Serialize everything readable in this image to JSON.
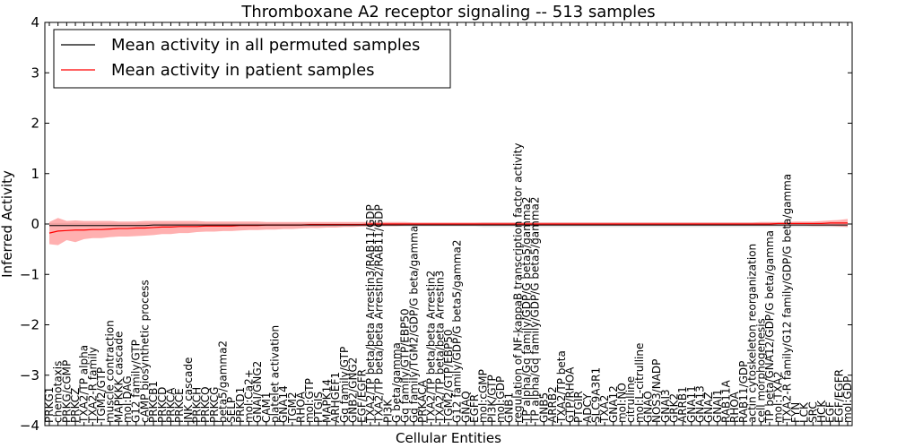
{
  "chart_data": {
    "type": "line",
    "title": "Thromboxane A2 receptor signaling -- 513 samples",
    "xlabel": "Cellular Entities",
    "ylabel": "Inferred Activity",
    "ylim": [
      -4,
      4
    ],
    "yticks": [
      -4,
      -3,
      -2,
      -1,
      0,
      1,
      2,
      3,
      4
    ],
    "ytick_labels": [
      "−4",
      "−3",
      "−2",
      "−1",
      "0",
      "1",
      "2",
      "3",
      "4"
    ],
    "legend": {
      "placement": "top-left",
      "entries": [
        {
          "label": "Mean activity in all permuted samples",
          "color": "#000000"
        },
        {
          "label": "Mean activity in patient samples",
          "color": "#ff0000"
        }
      ]
    },
    "categories": [
      "PRKG1",
      "chemotaxis",
      "PRKG/cGMP",
      "PRKCZ",
      "TXA2/TP alpha",
      "TXA2-R family",
      "TGM2/GTP",
      "muscle contraction",
      "MAPKKK cascade",
      "mol:DAG",
      "G12 family/GTP",
      "cAMP biosynthetic process",
      "PRKCB1",
      "PRKCD",
      "PRKCA",
      "PRKCE",
      "JNK cascade",
      "PRKCH",
      "PRKCQ",
      "PRKCG",
      "beta5/gamma2",
      "SELP",
      "PRKD1",
      "mol:Ca2+",
      "GNAI/GNG2",
      "CAM1",
      "platelet activation",
      "GNA14",
      "TGM2",
      "RHOA",
      "mol:GTP",
      "PTGIS",
      "MAPK14",
      "ARHGEF1",
      "Gq family/GTP",
      "GNB2/GNG2",
      "EGF/EGFR",
      "TXA2/TP beta/beta Arrestin3/RAB11/GDP",
      "TXA2/TP beta/beta Arrestin2/RAB11/GDP",
      "PI3K",
      "G beta/gamma",
      "Gq family/GTP/EBP50",
      "Gq family/TGM2/GDP/G beta/gamma",
      "PRKACA",
      "TXA2/TP beta/beta Arrestin2",
      "TXA2/TP beta/beta Arrestin3",
      "TGM2/GTP/EBP50",
      "G12 family/GDP/G beta5/gamma2",
      "GNAQ",
      "EGFR",
      "mol:cGMP",
      "PI3K/GTP",
      "mol:GDP",
      "GNB1",
      "regulation of NF-kappaB transcription factor activity",
      "TP alpha/Gq family/GDP/G beta5/gamma2",
      "TP alpha/Gq family/GDP/G beta5/gamma2",
      "GNB5",
      "ARRB2",
      "TXA2/TP beta",
      "GTP/RHOA",
      "PTGIR",
      "ADCY",
      "SLC9A3R1",
      "TXA2",
      "GNA12",
      "mol:NO",
      "citrulline",
      "mol:L-citrulline",
      "GNAO",
      "NOS3/NADP",
      "GNAI3",
      "GRK2",
      "ARRB1",
      "GNA11",
      "GNA13",
      "GNAZ",
      "GNAI1",
      "RAB11A",
      "RHOA",
      "RAB11/GDP",
      "actin cytoskeleton reorganization",
      "cell morphogenesis",
      "TP beta/GNA12/GDP/G beta/gamma",
      "mol:TXA2",
      "TXA2-R family/G12 family/GDP/G beta/gamma",
      "FYN",
      "LCK",
      "SRC",
      "HCK",
      "EGF",
      "EGF/EGFR",
      "mol:GDP"
    ],
    "series": [
      {
        "name": "Mean activity in all permuted samples",
        "color": "#000000",
        "values": [
          -0.03,
          -0.03,
          -0.03,
          -0.03,
          -0.03,
          -0.03,
          -0.03,
          -0.03,
          -0.03,
          -0.03,
          -0.03,
          -0.03,
          -0.02,
          -0.02,
          -0.02,
          -0.02,
          -0.02,
          -0.02,
          -0.02,
          -0.02,
          -0.02,
          -0.02,
          -0.02,
          -0.02,
          -0.02,
          -0.02,
          -0.02,
          -0.02,
          -0.02,
          -0.02,
          -0.02,
          -0.02,
          -0.02,
          -0.02,
          -0.02,
          -0.02,
          -0.02,
          -0.02,
          -0.02,
          -0.02,
          -0.02,
          -0.02,
          -0.02,
          -0.02,
          -0.02,
          -0.02,
          -0.02,
          -0.02,
          -0.02,
          -0.02,
          -0.02,
          -0.02,
          -0.02,
          -0.02,
          -0.02,
          -0.02,
          -0.02,
          -0.02,
          -0.02,
          -0.02,
          -0.02,
          -0.02,
          -0.02,
          -0.02,
          -0.02,
          -0.02,
          -0.02,
          -0.02,
          -0.02,
          -0.02,
          -0.02,
          -0.02,
          -0.02,
          -0.02,
          -0.02,
          -0.02,
          -0.02,
          -0.02,
          -0.02,
          -0.02,
          -0.02,
          -0.02,
          -0.02,
          -0.02,
          -0.02,
          -0.02,
          -0.02,
          -0.02,
          -0.02,
          -0.02,
          -0.02,
          -0.02,
          -0.02
        ],
        "band_low": [
          -0.05,
          -0.05,
          -0.05,
          -0.05,
          -0.05,
          -0.05,
          -0.05,
          -0.05,
          -0.05,
          -0.05,
          -0.05,
          -0.05,
          -0.05,
          -0.05,
          -0.05,
          -0.05,
          -0.05,
          -0.05,
          -0.05,
          -0.05,
          -0.05,
          -0.05,
          -0.05,
          -0.05,
          -0.05,
          -0.05,
          -0.05,
          -0.05,
          -0.05,
          -0.05,
          -0.05,
          -0.05,
          -0.05,
          -0.05,
          -0.05,
          -0.05,
          -0.05,
          -0.05,
          -0.05,
          -0.05,
          -0.05,
          -0.05,
          -0.05,
          -0.05,
          -0.05,
          -0.05,
          -0.05,
          -0.05,
          -0.05,
          -0.05,
          -0.06,
          -0.06,
          -0.06,
          -0.06,
          -0.06,
          -0.06,
          -0.06,
          -0.06,
          -0.06,
          -0.06,
          -0.06,
          -0.06,
          -0.06,
          -0.06,
          -0.06,
          -0.06,
          -0.06,
          -0.06,
          -0.06,
          -0.06,
          -0.06,
          -0.06,
          -0.06,
          -0.06,
          -0.06,
          -0.06,
          -0.06,
          -0.06,
          -0.06,
          -0.06,
          -0.06,
          -0.06,
          -0.06,
          -0.06,
          -0.06,
          -0.06,
          -0.06,
          -0.06,
          -0.06,
          -0.06,
          -0.06,
          -0.06,
          -0.06
        ],
        "band_high": [
          0.02,
          0.02,
          0.02,
          0.02,
          0.02,
          0.02,
          0.02,
          0.02,
          0.02,
          0.02,
          0.02,
          0.02,
          0.02,
          0.02,
          0.02,
          0.02,
          0.02,
          0.02,
          0.02,
          0.02,
          0.02,
          0.02,
          0.02,
          0.02,
          0.02,
          0.02,
          0.02,
          0.02,
          0.02,
          0.02,
          0.02,
          0.02,
          0.02,
          0.02,
          0.02,
          0.02,
          0.02,
          0.02,
          0.02,
          0.02,
          0.02,
          0.02,
          0.02,
          0.02,
          0.02,
          0.02,
          0.02,
          0.02,
          0.02,
          0.02,
          0.03,
          0.03,
          0.03,
          0.03,
          0.03,
          0.03,
          0.03,
          0.03,
          0.03,
          0.03,
          0.03,
          0.03,
          0.03,
          0.03,
          0.03,
          0.03,
          0.03,
          0.03,
          0.03,
          0.03,
          0.03,
          0.03,
          0.03,
          0.03,
          0.03,
          0.03,
          0.03,
          0.03,
          0.03,
          0.03,
          0.03,
          0.03,
          0.03,
          0.03,
          0.03,
          0.03,
          0.03,
          0.03,
          0.03,
          0.03,
          0.03,
          0.03,
          0.03
        ]
      },
      {
        "name": "Mean activity in patient samples",
        "color": "#ff0000",
        "values": [
          -0.18,
          -0.14,
          -0.13,
          -0.12,
          -0.12,
          -0.11,
          -0.11,
          -0.1,
          -0.09,
          -0.09,
          -0.08,
          -0.08,
          -0.07,
          -0.06,
          -0.06,
          -0.05,
          -0.05,
          -0.05,
          -0.04,
          -0.04,
          -0.04,
          -0.04,
          -0.03,
          -0.03,
          -0.03,
          -0.02,
          -0.02,
          -0.02,
          -0.02,
          -0.02,
          -0.01,
          -0.01,
          -0.01,
          -0.01,
          -0.01,
          -0.01,
          -0.01,
          0.0,
          0.0,
          0.0,
          0.0,
          0.0,
          0.0,
          0.0,
          0.0,
          0.0,
          0.0,
          0.0,
          0.0,
          0.0,
          0.0,
          0.0,
          0.0,
          0.0,
          0.0,
          0.0,
          0.0,
          0.0,
          0.0,
          0.0,
          0.0,
          0.0,
          0.0,
          0.0,
          0.0,
          0.0,
          0.0,
          0.0,
          0.0,
          0.0,
          0.0,
          0.0,
          0.0,
          0.0,
          0.0,
          0.0,
          0.0,
          0.0,
          0.0,
          0.0,
          0.0,
          0.0,
          0.0,
          0.0,
          0.01,
          0.01,
          0.01,
          0.01,
          0.01,
          0.01,
          0.02,
          0.02,
          0.02
        ],
        "band_low": [
          -0.4,
          -0.42,
          -0.32,
          -0.36,
          -0.3,
          -0.28,
          -0.28,
          -0.26,
          -0.25,
          -0.25,
          -0.24,
          -0.23,
          -0.22,
          -0.2,
          -0.2,
          -0.18,
          -0.18,
          -0.16,
          -0.15,
          -0.15,
          -0.14,
          -0.14,
          -0.13,
          -0.12,
          -0.12,
          -0.11,
          -0.11,
          -0.1,
          -0.1,
          -0.09,
          -0.08,
          -0.08,
          -0.07,
          -0.07,
          -0.06,
          -0.06,
          -0.05,
          -0.05,
          -0.04,
          -0.04,
          -0.04,
          -0.03,
          -0.03,
          -0.03,
          -0.03,
          -0.03,
          -0.03,
          -0.03,
          -0.03,
          -0.03,
          -0.03,
          -0.03,
          -0.03,
          -0.03,
          -0.03,
          -0.03,
          -0.03,
          -0.03,
          -0.03,
          -0.03,
          -0.03,
          -0.03,
          -0.03,
          -0.03,
          -0.03,
          -0.03,
          -0.03,
          -0.03,
          -0.03,
          -0.03,
          -0.03,
          -0.03,
          -0.03,
          -0.03,
          -0.03,
          -0.03,
          -0.03,
          -0.03,
          -0.03,
          -0.03,
          -0.03,
          -0.03,
          -0.03,
          -0.03,
          -0.03,
          -0.03,
          -0.03,
          -0.03,
          -0.04,
          -0.04,
          -0.04,
          -0.05,
          -0.06
        ],
        "band_high": [
          0.04,
          0.12,
          0.06,
          0.07,
          0.06,
          0.06,
          0.06,
          0.06,
          0.05,
          0.05,
          0.05,
          0.06,
          0.06,
          0.06,
          0.06,
          0.06,
          0.06,
          0.06,
          0.05,
          0.05,
          0.05,
          0.05,
          0.05,
          0.05,
          0.05,
          0.04,
          0.04,
          0.04,
          0.04,
          0.04,
          0.04,
          0.04,
          0.04,
          0.04,
          0.04,
          0.04,
          0.04,
          0.04,
          0.04,
          0.04,
          0.04,
          0.04,
          0.03,
          0.03,
          0.03,
          0.03,
          0.03,
          0.03,
          0.03,
          0.03,
          0.03,
          0.03,
          0.03,
          0.03,
          0.03,
          0.03,
          0.03,
          0.03,
          0.03,
          0.03,
          0.03,
          0.03,
          0.03,
          0.03,
          0.03,
          0.03,
          0.03,
          0.03,
          0.03,
          0.03,
          0.03,
          0.03,
          0.03,
          0.03,
          0.03,
          0.03,
          0.03,
          0.03,
          0.03,
          0.03,
          0.03,
          0.03,
          0.04,
          0.04,
          0.04,
          0.04,
          0.05,
          0.05,
          0.05,
          0.06,
          0.07,
          0.08,
          0.1
        ]
      }
    ]
  }
}
